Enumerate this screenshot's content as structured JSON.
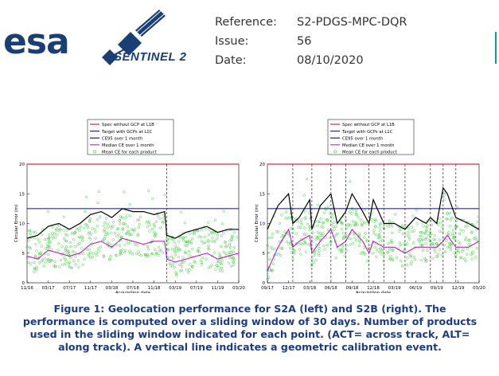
{
  "header": {
    "logo_text": "esa",
    "sentinel_text": "SENTINEL 2",
    "fields": [
      {
        "key": "Reference:",
        "value": "S2-PDGS-MPC-DQR"
      },
      {
        "key": "Issue:",
        "value": "56"
      },
      {
        "key": "Date:",
        "value": "08/10/2020"
      }
    ]
  },
  "caption": "Figure 1: Geolocation performance for S2A (left) and S2B (right). The performance is computed over a sliding window of 30 days. Number of products used in the sliding window indicated for each point. (ACT= across track, ALT= along track). A vertical line indicates a geometric calibration event.",
  "colors": {
    "spec_l1b": "#cc0000",
    "target_l1c": "#0000cc",
    "ce95": "#000000",
    "median": "#cc00cc",
    "mean_points": "#33cc33",
    "caption": "#1c3b8c",
    "logo": "#1a3f75"
  },
  "chart_data": [
    {
      "type": "line",
      "xlabel": "Acquisition date",
      "ylabel": "Circular Error (m)",
      "ylim": [
        0,
        20
      ],
      "yticks": [
        "0",
        "5",
        "10",
        "15",
        "20"
      ],
      "xticks": [
        "11/16",
        "03/17",
        "07/17",
        "11/17",
        "03/18",
        "07/18",
        "11/18",
        "03/19",
        "07/19",
        "11/19",
        "03/20"
      ],
      "legend_position": "top",
      "legend": [
        "Spec without GCP at L1B",
        "Target with GCPs at L1C",
        "CE95 over 1 month",
        "Median CE over 1 month",
        "Mean CE for each product"
      ],
      "spec_l1b": 20,
      "target_l1c": 12.5,
      "calibration_events_x": [
        6.6
      ],
      "series": [
        {
          "name": "CE95 over 1 month",
          "x": [
            0,
            0.5,
            1,
            1.5,
            2,
            2.5,
            3,
            3.5,
            4,
            4.5,
            5,
            5.5,
            6,
            6.5,
            6.6,
            7,
            7.5,
            8,
            8.5,
            9,
            9.5,
            10
          ],
          "values": [
            7.5,
            8,
            9.5,
            10,
            9,
            10,
            11.5,
            12,
            11,
            12.5,
            12,
            12,
            11.5,
            12,
            8,
            7.5,
            8.5,
            9,
            9.5,
            8.5,
            9,
            9
          ]
        },
        {
          "name": "Median CE over 1 month",
          "x": [
            0,
            0.5,
            1,
            1.5,
            2,
            2.5,
            3,
            3.5,
            4,
            4.5,
            5,
            5.5,
            6,
            6.5,
            6.6,
            7,
            7.5,
            8,
            8.5,
            9,
            9.5,
            10
          ],
          "values": [
            4.5,
            4,
            5.5,
            5,
            4.5,
            5,
            6.5,
            7,
            6,
            7.5,
            7,
            6.5,
            7,
            7,
            4,
            3.5,
            4,
            4.5,
            5,
            4,
            4.5,
            5
          ]
        }
      ]
    },
    {
      "type": "line",
      "xlabel": "Acquisition date",
      "ylabel": "Circular Error (m)",
      "ylim": [
        0,
        20
      ],
      "yticks": [
        "0",
        "5",
        "10",
        "15",
        "20"
      ],
      "xticks": [
        "09/17",
        "12/17",
        "03/18",
        "06/18",
        "09/18",
        "12/18",
        "03/19",
        "06/19",
        "09/19",
        "12/19",
        "03/20"
      ],
      "legend_position": "top",
      "legend": [
        "Spec without GCP at L1B",
        "Target with GCPs at L1C",
        "CE95 over 1 month",
        "Median CE over 1 month",
        "Mean CE for each product"
      ],
      "spec_l1b": 20,
      "target_l1c": 12.5,
      "calibration_events_x": [
        1.2,
        2.1,
        3,
        3.7,
        4.8,
        5.5,
        6.5,
        7.7,
        8.3,
        8.9
      ],
      "series": [
        {
          "name": "CE95 over 1 month",
          "x": [
            0,
            0.5,
            1,
            1.2,
            1.5,
            2,
            2.1,
            2.5,
            3,
            3.3,
            3.7,
            4,
            4.5,
            4.8,
            5,
            5.5,
            6,
            6.5,
            7,
            7.5,
            7.7,
            8,
            8.3,
            8.5,
            8.9,
            9.5,
            10
          ],
          "values": [
            9,
            13,
            15,
            10,
            11,
            14,
            9,
            13,
            15,
            10,
            12,
            15,
            12,
            10,
            14,
            10,
            10,
            9,
            11,
            10,
            11,
            10,
            16,
            15,
            11,
            10,
            9
          ]
        },
        {
          "name": "Median CE over 1 month",
          "x": [
            0,
            0.5,
            1,
            1.2,
            1.5,
            2,
            2.1,
            2.5,
            3,
            3.3,
            3.7,
            4,
            4.5,
            4.8,
            5,
            5.5,
            6,
            6.5,
            7,
            7.5,
            7.7,
            8,
            8.3,
            8.5,
            8.9,
            9.5,
            10
          ],
          "values": [
            2,
            6,
            9,
            6,
            7,
            8,
            5,
            7,
            9,
            6,
            7,
            9,
            7,
            5,
            7,
            6,
            6,
            5,
            6,
            6,
            6,
            6,
            7,
            8,
            6,
            6,
            7
          ]
        }
      ]
    }
  ]
}
